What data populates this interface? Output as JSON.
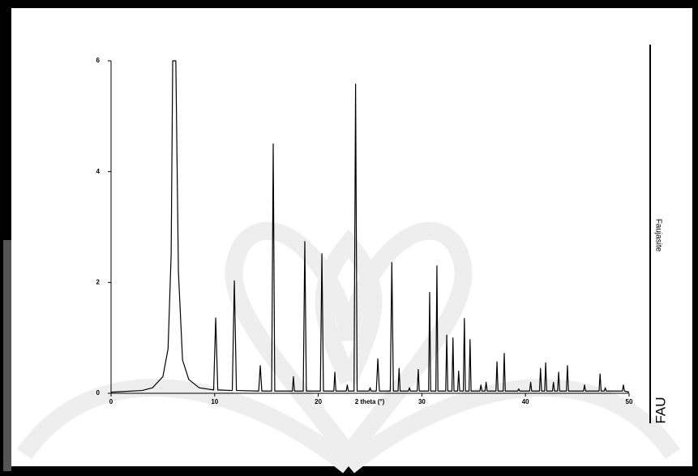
{
  "chart_data": {
    "type": "line",
    "x_label": "2 theta (°)",
    "annotations": [
      "Faujasite",
      "FAU"
    ],
    "color": "#000000",
    "xlim": [
      0,
      50
    ],
    "xticks": [
      0,
      10,
      20,
      30,
      40,
      50
    ],
    "ylim": [
      0,
      6
    ],
    "yticks": [
      0,
      2,
      4,
      6
    ],
    "x": [
      0,
      3,
      4,
      5,
      5.5,
      5.8,
      5.95,
      6.25,
      6.5,
      6.9,
      7.5,
      8.5,
      9.9,
      10.1,
      10.3,
      11.7,
      11.9,
      12.1,
      14.25,
      14.4,
      14.55,
      15.5,
      15.65,
      15.8,
      17.5,
      17.6,
      17.7,
      18.55,
      18.7,
      18.85,
      20.2,
      20.35,
      20.5,
      21.5,
      21.6,
      21.7,
      22.7,
      22.8,
      22.9,
      23.45,
      23.6,
      23.75,
      24.9,
      25.0,
      25.1,
      25.6,
      25.75,
      25.9,
      26.95,
      27.1,
      27.25,
      27.7,
      27.8,
      27.9,
      28.7,
      28.8,
      28.9,
      29.55,
      29.65,
      29.75,
      30.65,
      30.75,
      30.85,
      31.35,
      31.45,
      31.55,
      32.3,
      32.4,
      32.5,
      32.9,
      33.0,
      33.1,
      33.45,
      33.55,
      33.65,
      34.0,
      34.1,
      34.2,
      34.55,
      34.65,
      34.75,
      35.6,
      35.7,
      35.8,
      36.1,
      36.2,
      36.3,
      37.15,
      37.25,
      37.35,
      37.85,
      37.95,
      38.05,
      39.25,
      39.35,
      39.45,
      40.4,
      40.5,
      40.6,
      41.35,
      41.45,
      41.55,
      41.85,
      41.95,
      42.05,
      42.6,
      42.7,
      42.8,
      43.1,
      43.2,
      43.3,
      43.95,
      44.05,
      44.15,
      45.6,
      45.7,
      45.8,
      47.1,
      47.2,
      47.3,
      47.6,
      47.7,
      47.8,
      49.35,
      49.45,
      49.55,
      50
    ],
    "values": [
      0.02,
      0.05,
      0.1,
      0.3,
      0.8,
      2.5,
      6,
      6,
      2.2,
      0.6,
      0.25,
      0.1,
      0.06,
      1.36,
      0.06,
      0.05,
      2.03,
      0.05,
      0.04,
      0.5,
      0.04,
      0.04,
      4.5,
      0.04,
      0.04,
      0.3,
      0.04,
      0.04,
      2.74,
      0.04,
      0.04,
      2.52,
      0.04,
      0.04,
      0.38,
      0.04,
      0.04,
      0.15,
      0.04,
      0.04,
      5.58,
      0.04,
      0.04,
      0.1,
      0.04,
      0.04,
      0.62,
      0.04,
      0.04,
      2.36,
      0.04,
      0.04,
      0.45,
      0.04,
      0.04,
      0.1,
      0.04,
      0.04,
      0.43,
      0.04,
      0.04,
      1.82,
      0.04,
      0.04,
      2.3,
      0.04,
      0.04,
      1.05,
      0.04,
      0.04,
      1.0,
      0.04,
      0.04,
      0.4,
      0.04,
      0.04,
      1.35,
      0.04,
      0.04,
      0.97,
      0.04,
      0.04,
      0.15,
      0.04,
      0.04,
      0.2,
      0.04,
      0.04,
      0.57,
      0.04,
      0.04,
      0.72,
      0.04,
      0.04,
      0.08,
      0.04,
      0.04,
      0.2,
      0.04,
      0.04,
      0.45,
      0.04,
      0.04,
      0.55,
      0.04,
      0.04,
      0.2,
      0.04,
      0.04,
      0.38,
      0.04,
      0.04,
      0.5,
      0.04,
      0.04,
      0.15,
      0.04,
      0.04,
      0.35,
      0.04,
      0.04,
      0.1,
      0.04,
      0.04,
      0.15,
      0.04,
      0.02
    ]
  }
}
